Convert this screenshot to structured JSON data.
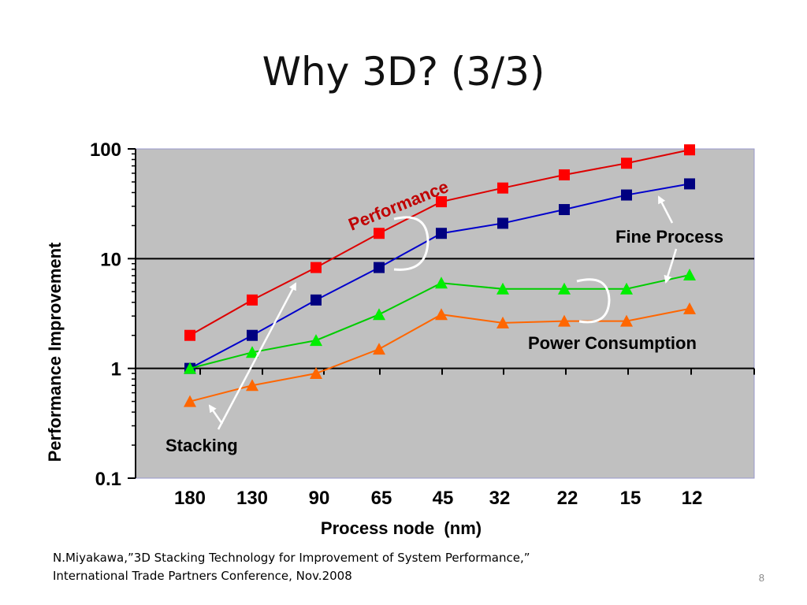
{
  "slide": {
    "title": "Why 3D? (3/3)",
    "citation_line1": "N.Miyakawa,”3D Stacking Technology for Improvement of System Performance,”",
    "citation_line2": "International Trade Partners Conference, Nov.2008",
    "page_number": "8"
  },
  "chart_data": {
    "type": "line",
    "title": "",
    "xlabel": "Process node  (nm)",
    "ylabel": "Performance Improvement",
    "y_scale": "log",
    "ylim": [
      0.1,
      100
    ],
    "categories": [
      "180",
      "130",
      "90",
      "65",
      "45",
      "32",
      "22",
      "15",
      "12"
    ],
    "yticks": [
      "0.1",
      "1",
      "10",
      "100"
    ],
    "grid": "horizontal lines at 1 and 10",
    "background": "#c0c0c0",
    "series": [
      {
        "name": "",
        "color": "#ff0000",
        "line_color": "#dd0000",
        "marker": "square",
        "values": [
          2.0,
          4.2,
          8.3,
          17,
          33,
          44,
          58,
          74,
          98
        ]
      },
      {
        "name": "",
        "color": "#000080",
        "line_color": "#0000cc",
        "marker": "square",
        "values": [
          1.0,
          2.0,
          4.2,
          8.3,
          17,
          21,
          28,
          38,
          48
        ]
      },
      {
        "name": "",
        "color": "#00ee00",
        "line_color": "#00cc00",
        "marker": "triangle",
        "values": [
          1.0,
          1.4,
          1.8,
          3.1,
          6.0,
          5.3,
          5.3,
          5.3,
          7.1
        ]
      },
      {
        "name": "",
        "color": "#ff6600",
        "line_color": "#ff6600",
        "marker": "triangle",
        "values": [
          0.5,
          0.7,
          0.9,
          1.5,
          3.1,
          2.6,
          2.7,
          2.7,
          3.5
        ]
      }
    ],
    "annotations": {
      "performance": "Performance",
      "fine_process": "Fine Process",
      "power_consumption": "Power Consumption",
      "stacking": "Stacking"
    }
  }
}
